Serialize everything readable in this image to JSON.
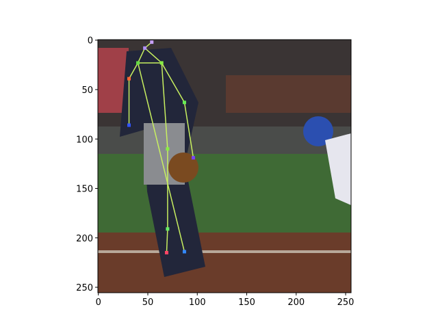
{
  "chart_data": {
    "type": "image",
    "xlim": [
      -0.5,
      255.5
    ],
    "ylim": [
      255.5,
      -0.5
    ],
    "xticks": [
      0,
      50,
      100,
      150,
      200,
      250
    ],
    "yticks": [
      0,
      50,
      100,
      150,
      200,
      250
    ],
    "keypoints": {
      "x": [
        54,
        47,
        40,
        64,
        31,
        31,
        87,
        96,
        70,
        70,
        69,
        87
      ],
      "y": [
        2,
        8,
        23,
        23,
        39,
        86,
        63,
        119,
        110,
        191,
        215,
        214
      ],
      "colors": [
        "#c8a0ff",
        "#b090ff",
        "#66dd44",
        "#88ee44",
        "#ff6633",
        "#3355ff",
        "#66ee55",
        "#7744ff",
        "#88ee44",
        "#66ee66",
        "#ff4466",
        "#3388ff"
      ]
    },
    "edges": [
      [
        0,
        1
      ],
      [
        1,
        2
      ],
      [
        1,
        3
      ],
      [
        2,
        3
      ],
      [
        2,
        4
      ],
      [
        4,
        5
      ],
      [
        3,
        6
      ],
      [
        6,
        7
      ],
      [
        2,
        11
      ],
      [
        3,
        8
      ],
      [
        8,
        9
      ],
      [
        9,
        10
      ]
    ],
    "edge_color": "#c8f060"
  }
}
